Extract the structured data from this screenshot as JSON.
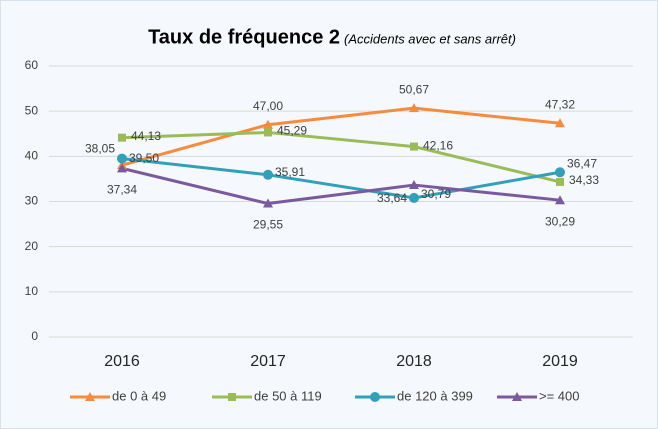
{
  "chart_data": {
    "type": "line",
    "title": "Taux de  fréquence 2",
    "subtitle": "(Accidents avec et sans arrêt)",
    "categories": [
      "2016",
      "2017",
      "2018",
      "2019"
    ],
    "series": [
      {
        "name": "de 0 à 49",
        "color": "#f58b3d",
        "marker": "triangle",
        "values": [
          38.05,
          47,
          50.67,
          47.32
        ],
        "value_labels": [
          "38,05",
          "47,00",
          "50,67",
          "47,32"
        ]
      },
      {
        "name": "de 50 à 119",
        "color": "#9bbb59",
        "marker": "square",
        "values": [
          44.13,
          45.29,
          42.16,
          34.33
        ],
        "value_labels": [
          "44,13",
          "45,29",
          "42,16",
          "34,33"
        ]
      },
      {
        "name": "de 120 à 399",
        "color": "#31a0b8",
        "marker": "circle",
        "values": [
          39.5,
          35.91,
          30.79,
          36.47
        ],
        "value_labels": [
          "39,50",
          "35,91",
          "30,79",
          "36,47"
        ]
      },
      {
        "name": ">= 400",
        "color": "#7a5a9e",
        "marker": "triangle",
        "values": [
          37.34,
          29.55,
          33.64,
          30.29
        ],
        "value_labels": [
          "37,34",
          "29,55",
          "33,64",
          "30,29"
        ]
      }
    ],
    "ylim": [
      0,
      60
    ],
    "yticks": [
      0,
      10,
      20,
      30,
      40,
      50,
      60
    ],
    "grid": true,
    "legend": "bottom"
  }
}
